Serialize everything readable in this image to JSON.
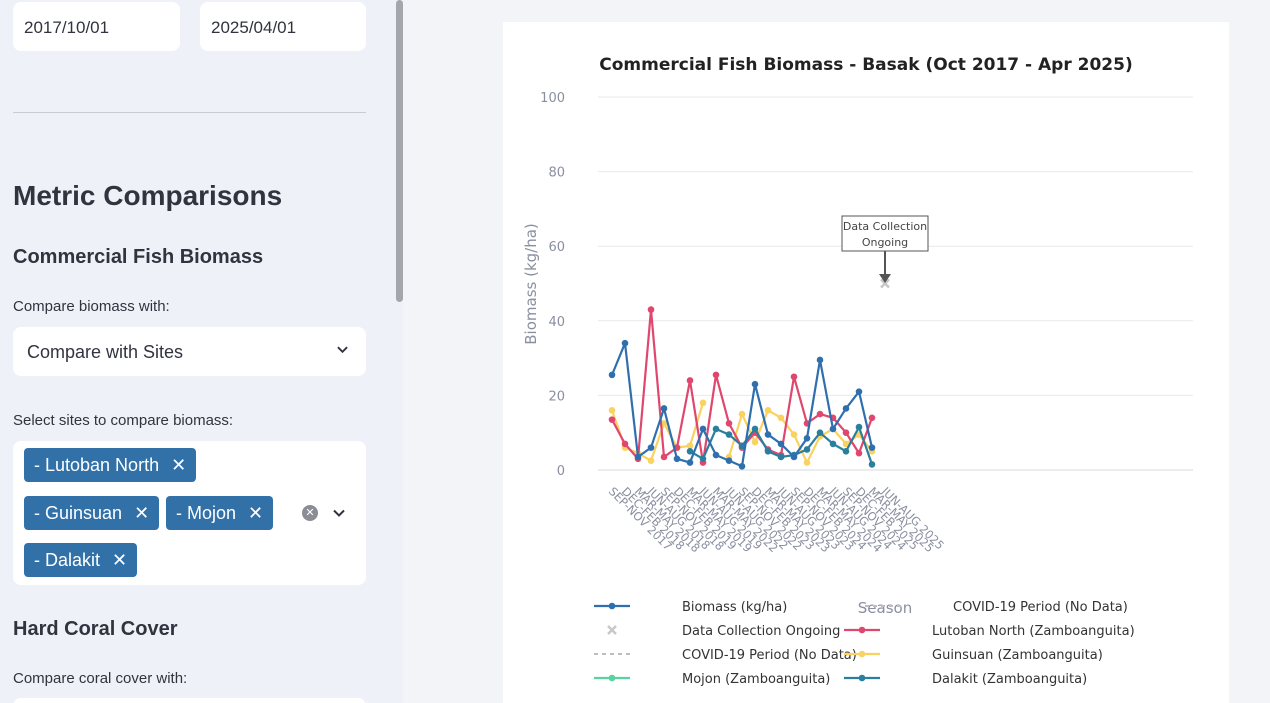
{
  "dates": {
    "start": "2017/10/01",
    "end": "2025/04/01"
  },
  "sidebar": {
    "section_title": "Metric Comparisons",
    "biomass_heading": "Commercial Fish Biomass",
    "compare_label": "Compare biomass with:",
    "compare_value": "Compare with Sites",
    "select_sites_label": "Select sites to compare biomass:",
    "selected_sites": [
      "- Lutoban North",
      "- Guinsuan",
      "- Mojon",
      "- Dalakit"
    ],
    "coral_heading": "Hard Coral Cover",
    "coral_compare_label": "Compare coral cover with:"
  },
  "colors": {
    "biomass": "#2f6fae",
    "lutoban": "#e0476f",
    "guinsuan": "#f9d25f",
    "mojon": "#58d3a0",
    "dalakit": "#2b7f9e",
    "covid": "#bdbec4",
    "ongoing": "#c8c8c8"
  },
  "chart_data": {
    "type": "line",
    "title": "Commercial Fish Biomass - Basak (Oct 2017 - Apr 2025)",
    "xlabel": "Season",
    "ylabel": "Biomass (kg/ha)",
    "ylim": [
      0,
      100
    ],
    "yticks": [
      0,
      20,
      40,
      60,
      80,
      100
    ],
    "categories": [
      "SEP-NOV 2017",
      "DEC-FEB 2018",
      "MAR-MAY 2018",
      "JUN-AUG 2018",
      "SEP-NOV 2018",
      "DEC-FEB 2019",
      "MAR-MAY 2019",
      "JUN-AUG 2019",
      "MAR-MAY 2022",
      "JUN-AUG 2022",
      "SEP-NOV 2022",
      "DEC-FEB 2023",
      "MAR-MAY 2023",
      "JUN-AUG 2023",
      "SEP-NOV 2023",
      "DEC-FEB 2024",
      "MAR-MAY 2024",
      "JUN-AUG 2024",
      "SEP-NOV 2024",
      "DEC-FEB 2025",
      "MAR-MAY 2025",
      "JUN-AUG 2025"
    ],
    "series": [
      {
        "name": "Biomass (kg/ha)",
        "key": "biomass",
        "x": [
          0,
          0.5,
          1,
          1.5,
          2,
          2.5,
          3,
          3.5,
          4,
          4.5,
          5,
          5.5,
          6,
          6.5,
          7,
          7.5,
          8,
          8.5,
          9,
          9.5,
          10
        ],
        "values": [
          25.5,
          34,
          3.5,
          6,
          16.5,
          3,
          2,
          11,
          4,
          2.5,
          1,
          23,
          9.5,
          7,
          3.5,
          8.5,
          29.5,
          11,
          16.5,
          21,
          6
        ]
      },
      {
        "name": "Lutoban North (Zamboanguita)",
        "key": "lutoban",
        "x": [
          0,
          0.5,
          1,
          1.5,
          2,
          2.5,
          3,
          3.5,
          4,
          4.5,
          5,
          5.5,
          6,
          6.5,
          7,
          7.5,
          8,
          8.5,
          9,
          9.5,
          10
        ],
        "values": [
          13.5,
          7,
          3,
          43,
          3.5,
          6,
          24,
          2,
          25.5,
          12.5,
          6,
          10,
          5.5,
          4,
          25,
          12.5,
          15,
          14,
          10,
          4.5,
          14
        ]
      },
      {
        "name": "Guinsuan (Zamboanguita)",
        "key": "guinsuan",
        "x": [
          0,
          0.5,
          1,
          1.5,
          2,
          2.5,
          3,
          3.5,
          4,
          4.5,
          5,
          5.5,
          6,
          6.5,
          7,
          7.5,
          8,
          8.5,
          9,
          9.5,
          10
        ],
        "values": [
          16,
          6,
          4.5,
          2.5,
          12.5,
          6,
          6.5,
          18,
          null,
          3.5,
          15,
          7.5,
          16,
          14,
          9.5,
          2,
          9,
          11,
          7,
          9.5,
          5
        ]
      },
      {
        "name": "Mojon (Zamboanguita)",
        "key": "mojon",
        "x": [],
        "values": []
      },
      {
        "name": "Dalakit (Zamboanguita)",
        "key": "dalakit",
        "x": [
          3,
          3.5,
          4,
          4.5,
          5,
          5.5,
          6,
          6.5,
          7,
          7.5,
          8,
          8.5,
          9,
          9.5,
          10
        ],
        "values": [
          5,
          3,
          11,
          9.5,
          6.5,
          11,
          5,
          3.5,
          4,
          5.5,
          10,
          7,
          5,
          11.5,
          1.5
        ]
      }
    ],
    "covid_line": {
      "name": "COVID-19 Period (No Data)",
      "x": [
        3.5,
        4
      ],
      "values": [
        2,
        25.5
      ]
    },
    "ongoing_marker": {
      "name": "Data Collection Ongoing",
      "x": 10.5,
      "value": 50
    },
    "annotation": {
      "text_line1": "Data Collection",
      "text_line2": "Ongoing"
    },
    "legend": [
      {
        "label": "Biomass (kg/ha)",
        "key": "biomass",
        "symbol": "line-dot"
      },
      {
        "label": "COVID-19 Period (No Data)",
        "key": "covid",
        "symbol": "dash"
      },
      {
        "label": "Data Collection Ongoing",
        "key": "ongoing",
        "symbol": "x"
      },
      {
        "label": "Lutoban North (Zamboanguita)",
        "key": "lutoban",
        "symbol": "line-dot"
      },
      {
        "label": "COVID-19 Period (No Data)",
        "key": "covid",
        "symbol": "dash"
      },
      {
        "label": "Guinsuan (Zamboanguita)",
        "key": "guinsuan",
        "symbol": "line-dot"
      },
      {
        "label": "Mojon (Zamboanguita)",
        "key": "mojon",
        "symbol": "line-dot"
      },
      {
        "label": "Dalakit (Zamboanguita)",
        "key": "dalakit",
        "symbol": "line-dot"
      }
    ]
  }
}
